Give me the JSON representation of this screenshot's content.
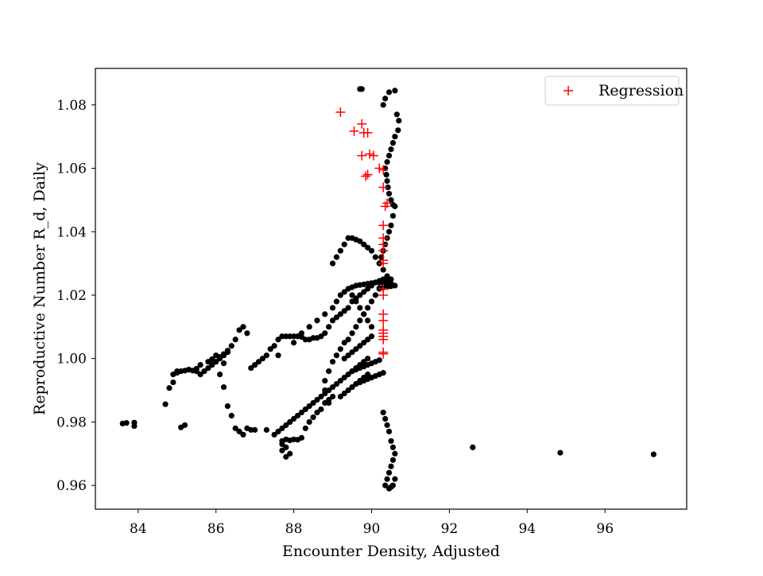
{
  "chart_data": {
    "type": "scatter",
    "title": "",
    "xlabel": "Encounter Density, Adjusted",
    "ylabel": "Reproductive Number R_d, Daily",
    "xlim": [
      82.9,
      98.1
    ],
    "ylim": [
      0.9525,
      1.0915
    ],
    "xticks": [
      84,
      86,
      88,
      90,
      92,
      94,
      96
    ],
    "yticks": [
      0.96,
      0.98,
      1.0,
      1.02,
      1.04,
      1.06,
      1.08
    ],
    "xtick_labels": [
      "84",
      "86",
      "88",
      "90",
      "92",
      "94",
      "96"
    ],
    "ytick_labels": [
      "0.96",
      "0.98",
      "1.00",
      "1.02",
      "1.04",
      "1.06",
      "1.08"
    ],
    "grid": false,
    "legend": {
      "placement": "top-right",
      "entries": [
        {
          "name": "Regression",
          "marker": "+",
          "color": "#ff0000"
        }
      ]
    },
    "series": [
      {
        "name": "",
        "marker": "dot",
        "color": "#000000",
        "x": [
          83.6,
          83.7,
          83.9,
          83.9,
          84.7,
          84.8,
          84.9,
          85.0,
          85.1,
          85.2,
          85.3,
          85.5,
          85.6,
          85.8,
          85.9,
          86.0,
          86.0,
          86.1,
          86.2,
          86.2,
          86.3,
          86.2,
          86.1,
          86.3,
          86.4,
          86.5,
          86.6,
          86.7,
          86.8,
          86.9,
          87.0,
          87.3,
          87.7,
          87.8,
          87.9,
          87.8,
          87.7,
          87.7,
          87.8,
          87.9,
          88.0,
          88.1,
          88.2,
          88.3,
          88.4,
          88.5,
          88.6,
          88.7,
          88.8,
          88.9,
          88.9,
          89.0,
          88.8,
          88.8,
          88.9,
          89.0,
          89.1,
          89.2,
          89.3,
          89.4,
          89.5,
          89.6,
          89.7,
          89.8,
          89.9,
          90.0,
          90.1,
          90.2,
          90.3,
          90.4,
          90.3,
          90.2,
          90.1,
          90.0,
          89.9,
          89.8,
          89.7,
          89.6,
          89.5,
          89.4,
          89.3,
          89.2,
          89.1,
          89.0,
          88.9,
          88.8,
          88.7,
          88.6,
          88.5,
          88.4,
          88.3,
          88.2,
          88.1,
          88.0,
          87.9,
          87.8,
          87.7,
          87.6,
          87.5,
          87.4,
          87.3,
          87.2,
          87.1,
          87.0,
          86.9,
          86.8,
          86.7,
          86.6,
          86.5,
          86.4,
          86.3,
          86.2,
          86.1,
          86.0,
          85.9,
          85.8,
          85.7,
          85.6,
          85.5,
          85.4,
          85.3,
          85.2,
          85.1,
          85.0,
          84.9,
          87.6,
          88.0,
          88.2,
          88.4,
          88.6,
          88.8,
          89.0,
          89.1,
          89.2,
          89.3,
          89.4,
          89.5,
          89.6,
          89.7,
          89.8,
          89.9,
          90.0,
          90.1,
          90.2,
          90.3,
          90.4,
          90.5,
          90.6,
          90.5,
          90.4,
          90.3,
          90.2,
          89.0,
          89.1,
          89.2,
          89.3,
          89.4,
          89.5,
          89.6,
          89.7,
          89.8,
          89.9,
          90.0,
          90.1,
          90.2,
          90.3,
          90.4,
          90.5,
          89.5,
          89.6,
          89.7,
          89.8,
          89.9,
          90.0,
          89.7,
          89.75,
          90.3,
          90.35,
          90.45,
          90.6,
          90.65,
          90.7,
          90.68,
          90.6,
          90.55,
          90.5,
          90.45,
          90.4,
          90.35,
          90.38,
          90.4,
          90.42,
          90.45,
          90.5,
          90.55,
          90.6,
          90.55,
          90.5,
          90.45,
          90.4,
          90.35,
          90.3,
          90.25,
          90.2,
          90.3,
          90.35,
          90.4,
          90.45,
          90.5,
          90.55,
          90.6,
          90.55,
          90.5,
          90.45,
          90.4,
          90.35,
          90.45,
          90.5,
          90.55,
          90.6,
          92.6,
          94.85,
          97.25,
          89.9,
          89.8,
          89.7,
          89.6,
          89.5,
          89.4,
          89.3,
          89.2,
          89.1,
          89.0,
          88.9,
          88.8,
          88.7,
          88.6,
          88.5,
          88.4,
          88.3,
          88.2,
          88.1,
          88.0,
          87.9,
          87.8,
          87.7,
          87.6,
          87.5,
          89.6,
          89.7,
          89.8,
          89.9,
          90.0,
          90.1,
          90.2,
          90.3,
          89.5,
          89.6,
          89.7,
          89.8,
          89.9,
          90.0,
          90.1,
          90.2,
          89.3,
          89.4,
          89.5,
          89.6,
          89.7,
          89.8,
          89.9,
          90.0,
          89.2,
          89.3,
          89.4,
          89.5,
          89.6,
          89.7,
          89.8,
          89.9
        ],
        "y": [
          0.9795,
          0.9797,
          0.9787,
          0.9798,
          0.9856,
          0.9907,
          0.9925,
          0.996,
          0.9783,
          0.979,
          0.9965,
          0.9968,
          0.998,
          0.999,
          0.9998,
          1.001,
          0.999,
          1.0005,
          1.0014,
          0.9985,
          1.0025,
          0.991,
          0.995,
          0.985,
          0.982,
          0.978,
          0.977,
          0.976,
          0.978,
          0.9775,
          0.9775,
          0.9775,
          0.974,
          0.972,
          0.97,
          0.969,
          0.971,
          0.973,
          0.9745,
          0.9742,
          0.9745,
          0.9744,
          0.975,
          0.978,
          0.98,
          0.9815,
          0.983,
          0.984,
          0.986,
          0.986,
          0.987,
          0.988,
          0.99,
          0.993,
          0.996,
          0.999,
          1.001,
          1.003,
          1.005,
          1.006,
          1.008,
          1.01,
          1.012,
          1.014,
          1.016,
          1.018,
          1.02,
          1.022,
          1.024,
          1.025,
          1.025,
          1.0245,
          1.024,
          1.023,
          1.022,
          1.021,
          1.02,
          1.019,
          1.018,
          1.016,
          1.015,
          1.014,
          1.013,
          1.012,
          1.01,
          1.008,
          1.007,
          1.0065,
          1.0065,
          1.006,
          1.006,
          1.0068,
          1.007,
          1.007,
          1.007,
          1.007,
          1.007,
          1.006,
          1.004,
          1.003,
          1.001,
          1.0,
          0.999,
          0.998,
          0.997,
          1.008,
          1.01,
          1.009,
          1.006,
          1.004,
          1.002,
          1.001,
          1.0,
          0.999,
          0.998,
          0.997,
          0.996,
          0.995,
          0.996,
          0.9962,
          0.9965,
          0.9962,
          0.996,
          0.9955,
          0.995,
          1.001,
          1.005,
          1.008,
          1.01,
          1.012,
          1.014,
          1.016,
          1.018,
          1.02,
          1.021,
          1.022,
          1.0225,
          1.023,
          1.0232,
          1.0234,
          1.0236,
          1.0238,
          1.024,
          1.024,
          1.024,
          1.0238,
          1.0236,
          1.023,
          1.0228,
          1.0226,
          1.0224,
          1.0222,
          1.03,
          1.032,
          1.034,
          1.036,
          1.038,
          1.038,
          1.0375,
          1.037,
          1.036,
          1.035,
          1.034,
          1.032,
          1.03,
          1.028,
          1.026,
          1.025,
          1.02,
          1.018,
          1.016,
          1.014,
          1.012,
          1.01,
          1.085,
          1.085,
          1.08,
          1.082,
          1.084,
          1.0845,
          1.077,
          1.075,
          1.072,
          1.07,
          1.068,
          1.066,
          1.064,
          1.062,
          1.06,
          1.058,
          1.056,
          1.054,
          1.052,
          1.05,
          1.0485,
          1.048,
          1.045,
          1.042,
          1.04,
          1.038,
          1.036,
          1.034,
          1.032,
          1.03,
          0.983,
          0.981,
          0.979,
          0.977,
          0.974,
          0.972,
          0.97,
          0.968,
          0.966,
          0.964,
          0.962,
          0.96,
          0.959,
          0.9595,
          0.96,
          0.962,
          0.972,
          0.9703,
          0.9698,
          1.0,
          0.999,
          0.998,
          0.997,
          0.996,
          0.995,
          0.994,
          0.993,
          0.992,
          0.991,
          0.99,
          0.989,
          0.988,
          0.987,
          0.986,
          0.985,
          0.984,
          0.983,
          0.982,
          0.981,
          0.98,
          0.979,
          0.978,
          0.977,
          0.976,
          0.992,
          0.9925,
          0.993,
          0.9935,
          0.994,
          0.9945,
          0.995,
          0.9955,
          0.996,
          0.9965,
          0.997,
          0.9975,
          0.998,
          0.9985,
          0.999,
          0.9995,
          1.0,
          1.001,
          1.002,
          1.003,
          1.004,
          1.005,
          1.006,
          1.007,
          0.988,
          0.989,
          0.99,
          0.991,
          0.992,
          0.993,
          0.994,
          0.995
        ]
      },
      {
        "name": "Regression",
        "marker": "+",
        "color": "#ff0000",
        "x": [
          89.2,
          89.55,
          89.75,
          89.8,
          89.9,
          89.75,
          89.95,
          90.05,
          90.2,
          90.3,
          89.9,
          89.85,
          90.3,
          90.35,
          90.4,
          90.3,
          90.3,
          90.3,
          90.3,
          90.3,
          90.3,
          90.3,
          90.3,
          90.3,
          90.3,
          90.3,
          90.3,
          90.3,
          90.3,
          90.3,
          90.3
        ],
        "y": [
          1.0777,
          1.0717,
          1.074,
          1.0712,
          1.0712,
          1.064,
          1.0645,
          1.064,
          1.06,
          1.0595,
          1.058,
          1.0575,
          1.054,
          1.048,
          1.049,
          1.042,
          1.038,
          1.036,
          1.034,
          1.031,
          1.03,
          1.022,
          1.02,
          1.014,
          1.012,
          1.009,
          1.008,
          1.007,
          1.006,
          1.002,
          1.0015
        ]
      }
    ]
  }
}
